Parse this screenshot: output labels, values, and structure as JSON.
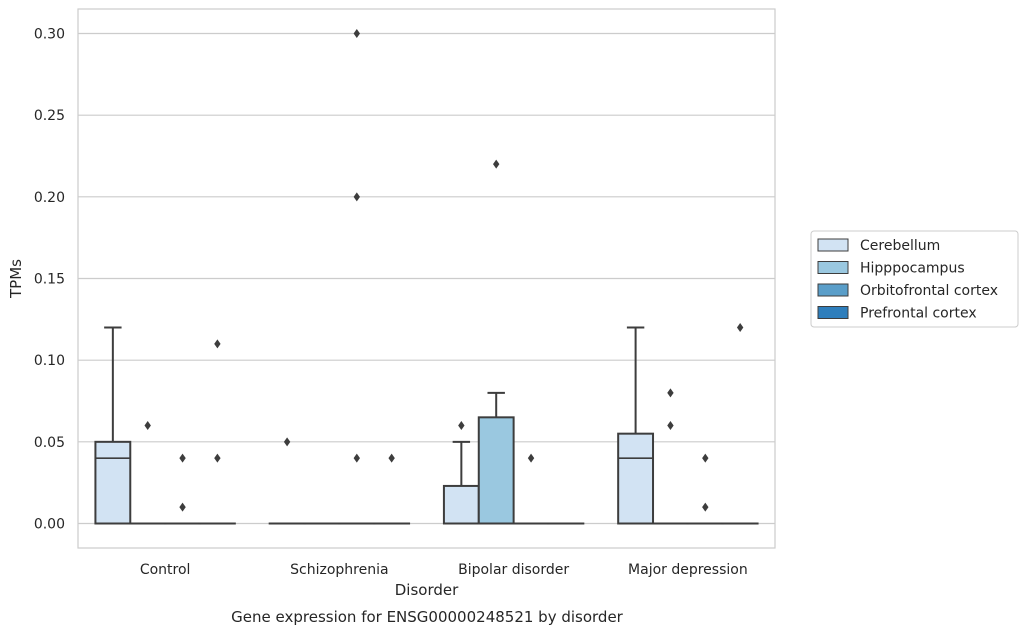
{
  "chart_data": {
    "type": "box",
    "title": "",
    "caption": "Gene expression for ENSG00000248521 by disorder",
    "xlabel": "Disorder",
    "ylabel": "TPMs",
    "ylim": [
      -0.015,
      0.315
    ],
    "yticks": [
      0.0,
      0.05,
      0.1,
      0.15,
      0.2,
      0.25,
      0.3
    ],
    "ytick_labels": [
      "0.00",
      "0.05",
      "0.10",
      "0.15",
      "0.20",
      "0.25",
      "0.30"
    ],
    "categories": [
      "Control",
      "Schizophrenia",
      "Bipolar disorder",
      "Major depression"
    ],
    "grid": "horizontal",
    "legend_position": "right",
    "series": [
      {
        "name": "Cerebellum",
        "color": "#d2e3f3",
        "boxes": [
          {
            "q1": 0.0,
            "median": 0.04,
            "q3": 0.05,
            "whisker_low": 0.0,
            "whisker_high": 0.12,
            "outliers": []
          },
          {
            "q1": 0.0,
            "median": 0.0,
            "q3": 0.0,
            "whisker_low": 0.0,
            "whisker_high": 0.0,
            "outliers": [
              0.05
            ]
          },
          {
            "q1": 0.0,
            "median": 0.0,
            "q3": 0.023,
            "whisker_low": 0.0,
            "whisker_high": 0.05,
            "outliers": [
              0.06
            ]
          },
          {
            "q1": 0.0,
            "median": 0.04,
            "q3": 0.055,
            "whisker_low": 0.0,
            "whisker_high": 0.12,
            "outliers": []
          }
        ]
      },
      {
        "name": "Hipppocampus",
        "color": "#9ac8e0",
        "boxes": [
          {
            "q1": 0.0,
            "median": 0.0,
            "q3": 0.0,
            "whisker_low": 0.0,
            "whisker_high": 0.0,
            "outliers": [
              0.06
            ]
          },
          {
            "q1": 0.0,
            "median": 0.0,
            "q3": 0.0,
            "whisker_low": 0.0,
            "whisker_high": 0.0,
            "outliers": []
          },
          {
            "q1": 0.0,
            "median": 0.0,
            "q3": 0.065,
            "whisker_low": 0.0,
            "whisker_high": 0.08,
            "outliers": [
              0.22
            ]
          },
          {
            "q1": 0.0,
            "median": 0.0,
            "q3": 0.0,
            "whisker_low": 0.0,
            "whisker_high": 0.0,
            "outliers": [
              0.06,
              0.08
            ]
          }
        ]
      },
      {
        "name": "Orbitofrontal cortex",
        "color": "#5a9ec9",
        "boxes": [
          {
            "q1": 0.0,
            "median": 0.0,
            "q3": 0.0,
            "whisker_low": 0.0,
            "whisker_high": 0.0,
            "outliers": [
              0.01,
              0.04
            ]
          },
          {
            "q1": 0.0,
            "median": 0.0,
            "q3": 0.0,
            "whisker_low": 0.0,
            "whisker_high": 0.0,
            "outliers": [
              0.04,
              0.2,
              0.3
            ]
          },
          {
            "q1": 0.0,
            "median": 0.0,
            "q3": 0.0,
            "whisker_low": 0.0,
            "whisker_high": 0.0,
            "outliers": [
              0.04
            ]
          },
          {
            "q1": 0.0,
            "median": 0.0,
            "q3": 0.0,
            "whisker_low": 0.0,
            "whisker_high": 0.0,
            "outliers": [
              0.01,
              0.04
            ]
          }
        ]
      },
      {
        "name": "Prefrontal cortex",
        "color": "#2e7ebc",
        "boxes": [
          {
            "q1": 0.0,
            "median": 0.0,
            "q3": 0.0,
            "whisker_low": 0.0,
            "whisker_high": 0.0,
            "outliers": [
              0.04,
              0.11
            ]
          },
          {
            "q1": 0.0,
            "median": 0.0,
            "q3": 0.0,
            "whisker_low": 0.0,
            "whisker_high": 0.0,
            "outliers": [
              0.04
            ]
          },
          {
            "q1": 0.0,
            "median": 0.0,
            "q3": 0.0,
            "whisker_low": 0.0,
            "whisker_high": 0.0,
            "outliers": []
          },
          {
            "q1": 0.0,
            "median": 0.0,
            "q3": 0.0,
            "whisker_low": 0.0,
            "whisker_high": 0.0,
            "outliers": [
              0.12
            ]
          }
        ]
      }
    ]
  }
}
